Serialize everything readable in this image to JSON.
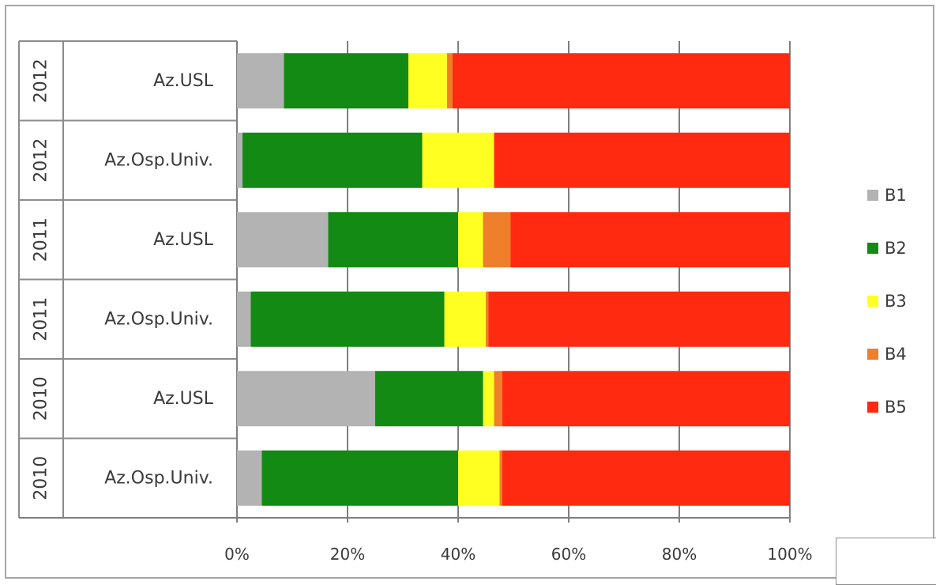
{
  "chart_data": {
    "type": "bar",
    "orientation": "horizontal",
    "stacked": "percent",
    "rows": [
      {
        "year": "2012",
        "category": "Az.USL"
      },
      {
        "year": "2012",
        "category": "Az.Osp.Univ."
      },
      {
        "year": "2011",
        "category": "Az.USL"
      },
      {
        "year": "2011",
        "category": "Az.Osp.Univ."
      },
      {
        "year": "2010",
        "category": "Az.USL"
      },
      {
        "year": "2010",
        "category": "Az.Osp.Univ."
      }
    ],
    "series": [
      {
        "name": "B1",
        "color": "#b3b3b3",
        "values": [
          8.5,
          1,
          16.5,
          2.5,
          25,
          4.5
        ]
      },
      {
        "name": "B2",
        "color": "#138a13",
        "values": [
          22.5,
          32.5,
          23.5,
          35,
          19.5,
          35.5
        ]
      },
      {
        "name": "B3",
        "color": "#ffff22",
        "values": [
          7,
          13,
          4.5,
          7.5,
          2,
          7.5
        ]
      },
      {
        "name": "B4",
        "color": "#ef7f2a",
        "values": [
          1,
          0,
          5,
          0.5,
          1.5,
          0.5
        ]
      },
      {
        "name": "B5",
        "color": "#ff2a10",
        "values": [
          61,
          53.5,
          50.5,
          54.5,
          52,
          52
        ]
      }
    ],
    "x_ticks": [
      "0%",
      "20%",
      "40%",
      "60%",
      "80%",
      "100%"
    ],
    "xlim": [
      0,
      100
    ],
    "grid": "vertical",
    "legend_position": "right"
  }
}
